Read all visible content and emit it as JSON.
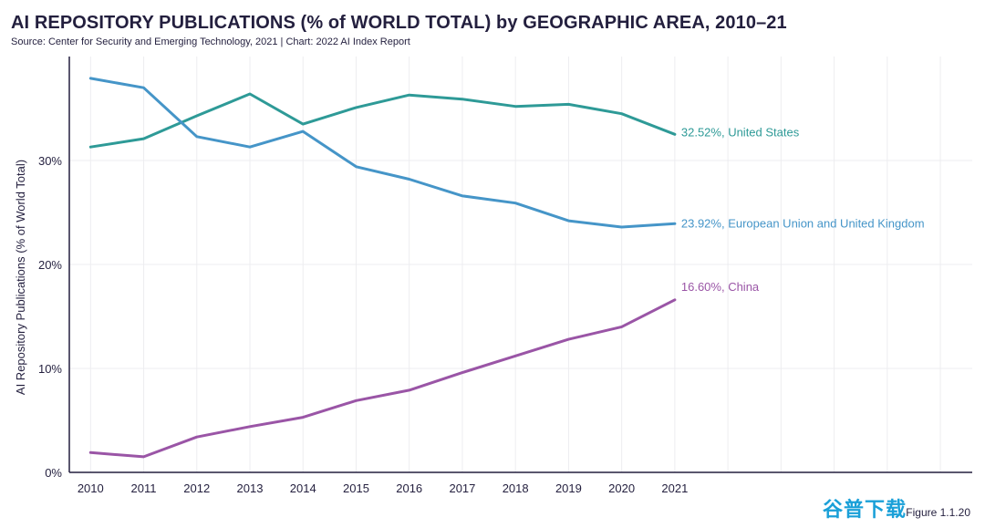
{
  "title": "AI REPOSITORY PUBLICATIONS (% of WORLD TOTAL) by GEOGRAPHIC AREA, 2010–21",
  "subtitle": "Source: Center for Security and Emerging Technology, 2021 | Chart: 2022 AI Index Report",
  "figure_label": "Figure 1.1.20",
  "watermark": "谷普下载",
  "chart_data": {
    "type": "line",
    "title": "AI REPOSITORY PUBLICATIONS (% of WORLD TOTAL) by GEOGRAPHIC AREA, 2010–21",
    "xlabel": "",
    "ylabel": "AI Repository Publications (% of World Total)",
    "x": [
      2010,
      2011,
      2012,
      2013,
      2014,
      2015,
      2016,
      2017,
      2018,
      2019,
      2020,
      2021
    ],
    "x_tick_labels": [
      "2010",
      "2011",
      "2012",
      "2013",
      "2014",
      "2015",
      "2016",
      "2017",
      "2018",
      "2019",
      "2020",
      "2021"
    ],
    "xlim": [
      2009.6,
      2026.6
    ],
    "ylim": [
      0,
      40
    ],
    "y_ticks": [
      0,
      10,
      20,
      30
    ],
    "y_tick_labels": [
      "0%",
      "10%",
      "20%",
      "30%"
    ],
    "grid": true,
    "series": [
      {
        "name": "United States",
        "color": "#2e9a97",
        "end_label": "32.52%, United States",
        "values": [
          31.3,
          32.1,
          34.3,
          36.4,
          33.5,
          35.1,
          36.3,
          35.9,
          35.2,
          35.4,
          34.5,
          32.52
        ]
      },
      {
        "name": "European Union and United Kingdom",
        "color": "#4595c8",
        "end_label": "23.92%, European Union and United Kingdom",
        "values": [
          37.9,
          37.0,
          32.3,
          31.3,
          32.8,
          29.4,
          28.2,
          26.6,
          25.9,
          24.2,
          23.6,
          23.92
        ]
      },
      {
        "name": "China",
        "color": "#9a55a6",
        "end_label": "16.60%, China",
        "values": [
          1.9,
          1.5,
          3.4,
          4.4,
          5.3,
          6.9,
          7.9,
          9.6,
          11.2,
          12.8,
          14.0,
          16.6
        ]
      }
    ]
  }
}
